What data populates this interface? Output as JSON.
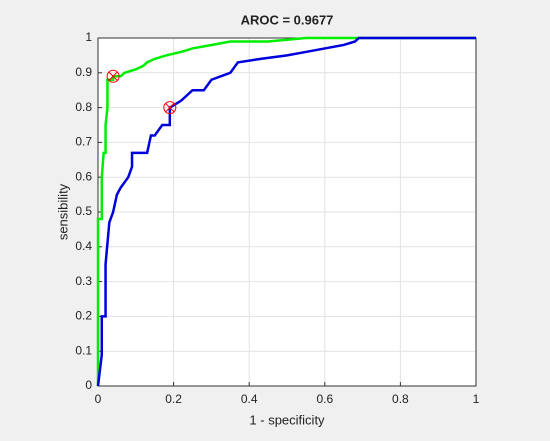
{
  "chart_data": {
    "type": "line",
    "title": "AROC = 0.9677",
    "xlabel": "1 - specificity",
    "ylabel": "sensibility",
    "xlim": [
      0,
      1
    ],
    "ylim": [
      0,
      1
    ],
    "xticks": [
      0,
      0.2,
      0.4,
      0.6,
      0.8,
      1
    ],
    "yticks": [
      0,
      0.1,
      0.2,
      0.3,
      0.4,
      0.5,
      0.6,
      0.7,
      0.8,
      0.9,
      1
    ],
    "grid": true,
    "series": [
      {
        "color": "#00ee00",
        "x": [
          0,
          0,
          0.01,
          0.01,
          0.015,
          0.02,
          0.02,
          0.025,
          0.025,
          0.04,
          0.04,
          0.06,
          0.07,
          0.1,
          0.12,
          0.13,
          0.15,
          0.18,
          0.22,
          0.25,
          0.3,
          0.35,
          0.45,
          0.55,
          1
        ],
        "values": [
          0,
          0.48,
          0.48,
          0.6,
          0.67,
          0.67,
          0.75,
          0.8,
          0.88,
          0.88,
          0.89,
          0.89,
          0.9,
          0.91,
          0.92,
          0.93,
          0.94,
          0.95,
          0.96,
          0.97,
          0.98,
          0.99,
          0.99,
          1,
          1
        ]
      },
      {
        "color": "#0000dd",
        "x": [
          0,
          0.01,
          0.01,
          0.02,
          0.02,
          0.03,
          0.04,
          0.05,
          0.06,
          0.08,
          0.09,
          0.09,
          0.13,
          0.14,
          0.15,
          0.17,
          0.19,
          0.19,
          0.22,
          0.25,
          0.28,
          0.3,
          0.35,
          0.37,
          0.43,
          0.5,
          0.55,
          0.6,
          0.65,
          0.68,
          0.69,
          1
        ],
        "values": [
          0,
          0.09,
          0.2,
          0.2,
          0.35,
          0.47,
          0.5,
          0.55,
          0.57,
          0.6,
          0.63,
          0.67,
          0.67,
          0.72,
          0.72,
          0.75,
          0.75,
          0.8,
          0.82,
          0.85,
          0.85,
          0.88,
          0.9,
          0.93,
          0.94,
          0.95,
          0.96,
          0.97,
          0.98,
          0.99,
          1,
          1
        ]
      }
    ],
    "points": {
      "color": "#ff0000",
      "x": [
        0.04,
        0.19
      ],
      "values": [
        0.89,
        0.8
      ]
    }
  }
}
